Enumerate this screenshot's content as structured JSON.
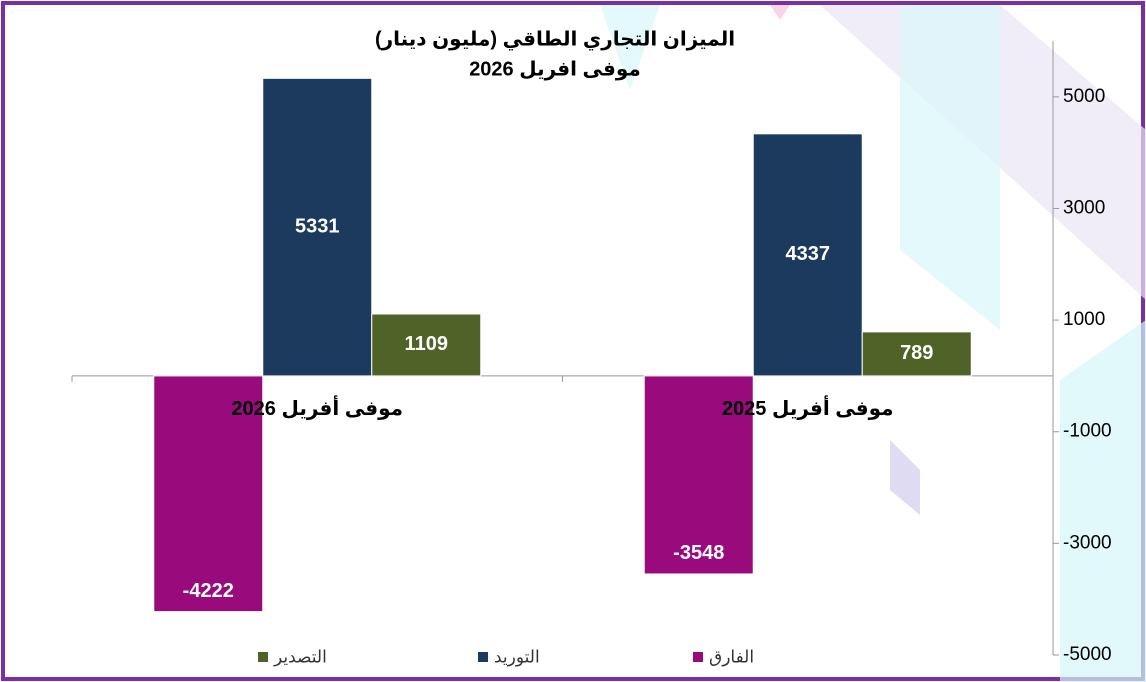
{
  "chart_data": {
    "type": "bar",
    "title": "الميزان التجاري الطاقي (مليون دينار)",
    "subtitle": "موفى افريل 2026",
    "categories": [
      "موفى أفريل 2025",
      "موفى أفريل 2026"
    ],
    "series": [
      {
        "name": "الفارق",
        "color": "#990b7d",
        "values": [
          -3548,
          -4222
        ]
      },
      {
        "name": "التوريد",
        "color": "#1c3a5e",
        "values": [
          4337,
          5331
        ]
      },
      {
        "name": "التصدير",
        "color": "#4f6228",
        "values": [
          789,
          1109
        ]
      }
    ],
    "ylim": [
      -5000,
      6000
    ],
    "yticks": [
      -5000,
      -3000,
      -1000,
      1000,
      3000,
      5000
    ],
    "axis_side": "right",
    "x_reversed": true
  }
}
